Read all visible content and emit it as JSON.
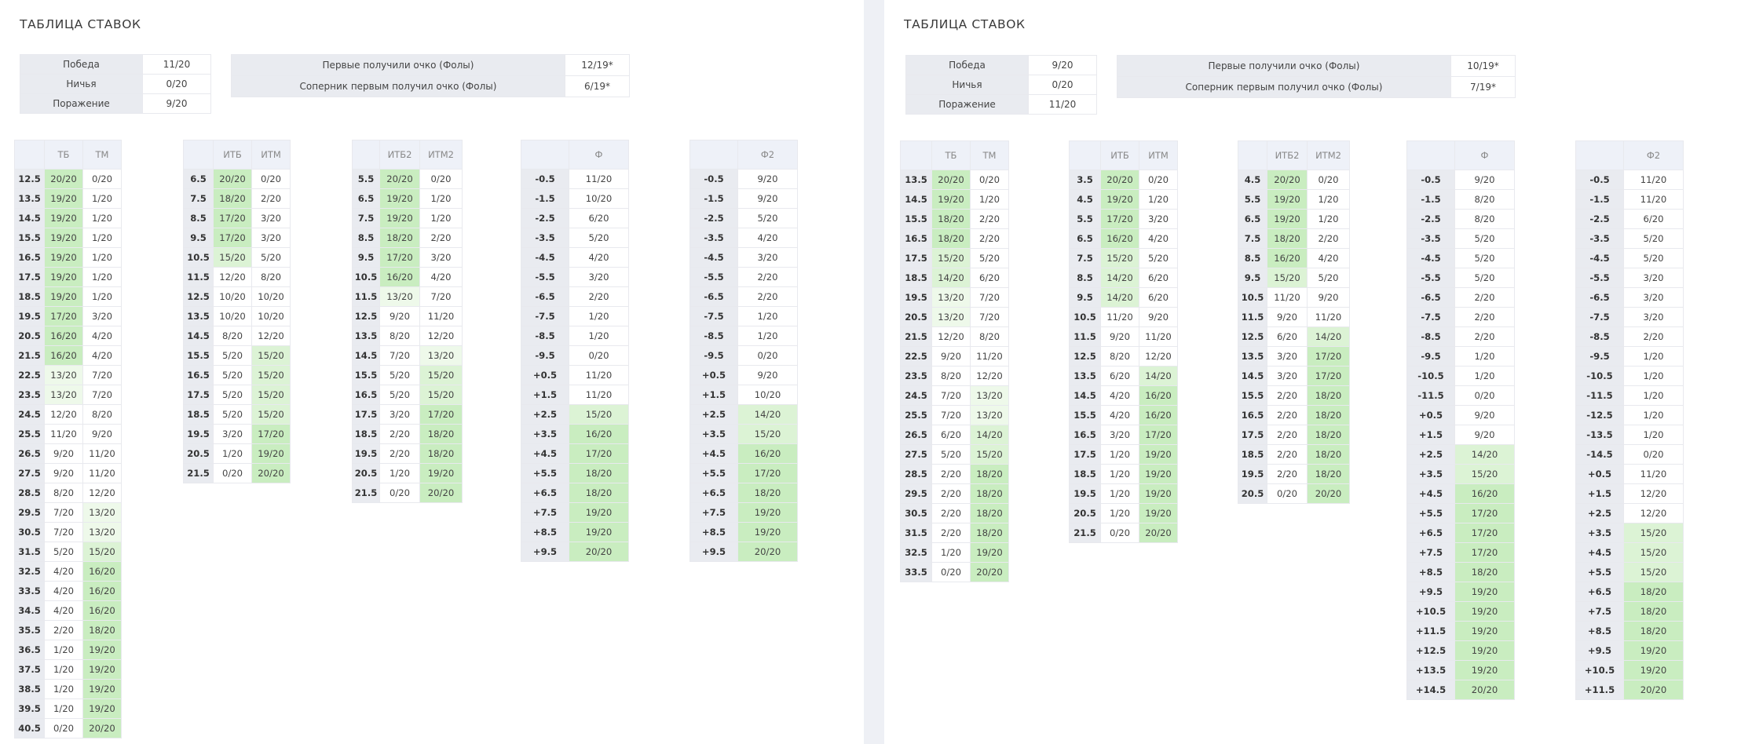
{
  "left": {
    "title": "ТАБЛИЦА СТАВОК",
    "results": [
      [
        "Победа",
        "11/20"
      ],
      [
        "Ничья",
        "0/20"
      ],
      [
        "Поражение",
        "9/20"
      ]
    ],
    "first_point": [
      [
        "Первые получили очко (Фолы)",
        "12/19*"
      ],
      [
        "Соперник первым получил очко (Фолы)",
        "6/19*"
      ]
    ],
    "tables": [
      {
        "headers": [
          "",
          "ТБ",
          "ТМ"
        ],
        "rows": [
          [
            "12.5",
            "20/20",
            "0/20"
          ],
          [
            "13.5",
            "19/20",
            "1/20"
          ],
          [
            "14.5",
            "19/20",
            "1/20"
          ],
          [
            "15.5",
            "19/20",
            "1/20"
          ],
          [
            "16.5",
            "19/20",
            "1/20"
          ],
          [
            "17.5",
            "19/20",
            "1/20"
          ],
          [
            "18.5",
            "19/20",
            "1/20"
          ],
          [
            "19.5",
            "17/20",
            "3/20"
          ],
          [
            "20.5",
            "16/20",
            "4/20"
          ],
          [
            "21.5",
            "16/20",
            "4/20"
          ],
          [
            "22.5",
            "13/20",
            "7/20"
          ],
          [
            "23.5",
            "13/20",
            "7/20"
          ],
          [
            "24.5",
            "12/20",
            "8/20"
          ],
          [
            "25.5",
            "11/20",
            "9/20"
          ],
          [
            "26.5",
            "9/20",
            "11/20"
          ],
          [
            "27.5",
            "9/20",
            "11/20"
          ],
          [
            "28.5",
            "8/20",
            "12/20"
          ],
          [
            "29.5",
            "7/20",
            "13/20"
          ],
          [
            "30.5",
            "7/20",
            "13/20"
          ],
          [
            "31.5",
            "5/20",
            "15/20"
          ],
          [
            "32.5",
            "4/20",
            "16/20"
          ],
          [
            "33.5",
            "4/20",
            "16/20"
          ],
          [
            "34.5",
            "4/20",
            "16/20"
          ],
          [
            "35.5",
            "2/20",
            "18/20"
          ],
          [
            "36.5",
            "1/20",
            "19/20"
          ],
          [
            "37.5",
            "1/20",
            "19/20"
          ],
          [
            "38.5",
            "1/20",
            "19/20"
          ],
          [
            "39.5",
            "1/20",
            "19/20"
          ],
          [
            "40.5",
            "0/20",
            "20/20"
          ]
        ]
      },
      {
        "headers": [
          "",
          "ИТБ",
          "ИТМ"
        ],
        "rows": [
          [
            "6.5",
            "20/20",
            "0/20"
          ],
          [
            "7.5",
            "18/20",
            "2/20"
          ],
          [
            "8.5",
            "17/20",
            "3/20"
          ],
          [
            "9.5",
            "17/20",
            "3/20"
          ],
          [
            "10.5",
            "15/20",
            "5/20"
          ],
          [
            "11.5",
            "12/20",
            "8/20"
          ],
          [
            "12.5",
            "10/20",
            "10/20"
          ],
          [
            "13.5",
            "10/20",
            "10/20"
          ],
          [
            "14.5",
            "8/20",
            "12/20"
          ],
          [
            "15.5",
            "5/20",
            "15/20"
          ],
          [
            "16.5",
            "5/20",
            "15/20"
          ],
          [
            "17.5",
            "5/20",
            "15/20"
          ],
          [
            "18.5",
            "5/20",
            "15/20"
          ],
          [
            "19.5",
            "3/20",
            "17/20"
          ],
          [
            "20.5",
            "1/20",
            "19/20"
          ],
          [
            "21.5",
            "0/20",
            "20/20"
          ]
        ]
      },
      {
        "headers": [
          "",
          "ИТБ2",
          "ИТМ2"
        ],
        "rows": [
          [
            "5.5",
            "20/20",
            "0/20"
          ],
          [
            "6.5",
            "19/20",
            "1/20"
          ],
          [
            "7.5",
            "19/20",
            "1/20"
          ],
          [
            "8.5",
            "18/20",
            "2/20"
          ],
          [
            "9.5",
            "17/20",
            "3/20"
          ],
          [
            "10.5",
            "16/20",
            "4/20"
          ],
          [
            "11.5",
            "13/20",
            "7/20"
          ],
          [
            "12.5",
            "9/20",
            "11/20"
          ],
          [
            "13.5",
            "8/20",
            "12/20"
          ],
          [
            "14.5",
            "7/20",
            "13/20"
          ],
          [
            "15.5",
            "5/20",
            "15/20"
          ],
          [
            "16.5",
            "5/20",
            "15/20"
          ],
          [
            "17.5",
            "3/20",
            "17/20"
          ],
          [
            "18.5",
            "2/20",
            "18/20"
          ],
          [
            "19.5",
            "2/20",
            "18/20"
          ],
          [
            "20.5",
            "1/20",
            "19/20"
          ],
          [
            "21.5",
            "0/20",
            "20/20"
          ]
        ]
      },
      {
        "headers": [
          "",
          "Ф"
        ],
        "rows": [
          [
            "-0.5",
            "11/20"
          ],
          [
            "-1.5",
            "10/20"
          ],
          [
            "-2.5",
            "6/20"
          ],
          [
            "-3.5",
            "5/20"
          ],
          [
            "-4.5",
            "4/20"
          ],
          [
            "-5.5",
            "3/20"
          ],
          [
            "-6.5",
            "2/20"
          ],
          [
            "-7.5",
            "1/20"
          ],
          [
            "-8.5",
            "1/20"
          ],
          [
            "-9.5",
            "0/20"
          ],
          [
            "+0.5",
            "11/20"
          ],
          [
            "+1.5",
            "11/20"
          ],
          [
            "+2.5",
            "15/20"
          ],
          [
            "+3.5",
            "16/20"
          ],
          [
            "+4.5",
            "17/20"
          ],
          [
            "+5.5",
            "18/20"
          ],
          [
            "+6.5",
            "18/20"
          ],
          [
            "+7.5",
            "19/20"
          ],
          [
            "+8.5",
            "19/20"
          ],
          [
            "+9.5",
            "20/20"
          ]
        ]
      },
      {
        "headers": [
          "",
          "Ф2"
        ],
        "rows": [
          [
            "-0.5",
            "9/20"
          ],
          [
            "-1.5",
            "9/20"
          ],
          [
            "-2.5",
            "5/20"
          ],
          [
            "-3.5",
            "4/20"
          ],
          [
            "-4.5",
            "3/20"
          ],
          [
            "-5.5",
            "2/20"
          ],
          [
            "-6.5",
            "2/20"
          ],
          [
            "-7.5",
            "1/20"
          ],
          [
            "-8.5",
            "1/20"
          ],
          [
            "-9.5",
            "0/20"
          ],
          [
            "+0.5",
            "9/20"
          ],
          [
            "+1.5",
            "10/20"
          ],
          [
            "+2.5",
            "14/20"
          ],
          [
            "+3.5",
            "15/20"
          ],
          [
            "+4.5",
            "16/20"
          ],
          [
            "+5.5",
            "17/20"
          ],
          [
            "+6.5",
            "18/20"
          ],
          [
            "+7.5",
            "19/20"
          ],
          [
            "+8.5",
            "19/20"
          ],
          [
            "+9.5",
            "20/20"
          ]
        ]
      }
    ]
  },
  "right": {
    "title": "ТАБЛИЦА СТАВОК",
    "results": [
      [
        "Победа",
        "9/20"
      ],
      [
        "Ничья",
        "0/20"
      ],
      [
        "Поражение",
        "11/20"
      ]
    ],
    "first_point": [
      [
        "Первые получили очко (Фолы)",
        "10/19*"
      ],
      [
        "Соперник первым получил очко (Фолы)",
        "7/19*"
      ]
    ],
    "tables": [
      {
        "headers": [
          "",
          "ТБ",
          "ТМ"
        ],
        "rows": [
          [
            "13.5",
            "20/20",
            "0/20"
          ],
          [
            "14.5",
            "19/20",
            "1/20"
          ],
          [
            "15.5",
            "18/20",
            "2/20"
          ],
          [
            "16.5",
            "18/20",
            "2/20"
          ],
          [
            "17.5",
            "15/20",
            "5/20"
          ],
          [
            "18.5",
            "14/20",
            "6/20"
          ],
          [
            "19.5",
            "13/20",
            "7/20"
          ],
          [
            "20.5",
            "13/20",
            "7/20"
          ],
          [
            "21.5",
            "12/20",
            "8/20"
          ],
          [
            "22.5",
            "9/20",
            "11/20"
          ],
          [
            "23.5",
            "8/20",
            "12/20"
          ],
          [
            "24.5",
            "7/20",
            "13/20"
          ],
          [
            "25.5",
            "7/20",
            "13/20"
          ],
          [
            "26.5",
            "6/20",
            "14/20"
          ],
          [
            "27.5",
            "5/20",
            "15/20"
          ],
          [
            "28.5",
            "2/20",
            "18/20"
          ],
          [
            "29.5",
            "2/20",
            "18/20"
          ],
          [
            "30.5",
            "2/20",
            "18/20"
          ],
          [
            "31.5",
            "2/20",
            "18/20"
          ],
          [
            "32.5",
            "1/20",
            "19/20"
          ],
          [
            "33.5",
            "0/20",
            "20/20"
          ]
        ]
      },
      {
        "headers": [
          "",
          "ИТБ",
          "ИТМ"
        ],
        "rows": [
          [
            "3.5",
            "20/20",
            "0/20"
          ],
          [
            "4.5",
            "19/20",
            "1/20"
          ],
          [
            "5.5",
            "17/20",
            "3/20"
          ],
          [
            "6.5",
            "16/20",
            "4/20"
          ],
          [
            "7.5",
            "15/20",
            "5/20"
          ],
          [
            "8.5",
            "14/20",
            "6/20"
          ],
          [
            "9.5",
            "14/20",
            "6/20"
          ],
          [
            "10.5",
            "11/20",
            "9/20"
          ],
          [
            "11.5",
            "9/20",
            "11/20"
          ],
          [
            "12.5",
            "8/20",
            "12/20"
          ],
          [
            "13.5",
            "6/20",
            "14/20"
          ],
          [
            "14.5",
            "4/20",
            "16/20"
          ],
          [
            "15.5",
            "4/20",
            "16/20"
          ],
          [
            "16.5",
            "3/20",
            "17/20"
          ],
          [
            "17.5",
            "1/20",
            "19/20"
          ],
          [
            "18.5",
            "1/20",
            "19/20"
          ],
          [
            "19.5",
            "1/20",
            "19/20"
          ],
          [
            "20.5",
            "1/20",
            "19/20"
          ],
          [
            "21.5",
            "0/20",
            "20/20"
          ]
        ]
      },
      {
        "headers": [
          "",
          "ИТБ2",
          "ИТМ2"
        ],
        "rows": [
          [
            "4.5",
            "20/20",
            "0/20"
          ],
          [
            "5.5",
            "19/20",
            "1/20"
          ],
          [
            "6.5",
            "19/20",
            "1/20"
          ],
          [
            "7.5",
            "18/20",
            "2/20"
          ],
          [
            "8.5",
            "16/20",
            "4/20"
          ],
          [
            "9.5",
            "15/20",
            "5/20"
          ],
          [
            "10.5",
            "11/20",
            "9/20"
          ],
          [
            "11.5",
            "9/20",
            "11/20"
          ],
          [
            "12.5",
            "6/20",
            "14/20"
          ],
          [
            "13.5",
            "3/20",
            "17/20"
          ],
          [
            "14.5",
            "3/20",
            "17/20"
          ],
          [
            "15.5",
            "2/20",
            "18/20"
          ],
          [
            "16.5",
            "2/20",
            "18/20"
          ],
          [
            "17.5",
            "2/20",
            "18/20"
          ],
          [
            "18.5",
            "2/20",
            "18/20"
          ],
          [
            "19.5",
            "2/20",
            "18/20"
          ],
          [
            "20.5",
            "0/20",
            "20/20"
          ]
        ]
      },
      {
        "headers": [
          "",
          "Ф"
        ],
        "rows": [
          [
            "-0.5",
            "9/20"
          ],
          [
            "-1.5",
            "8/20"
          ],
          [
            "-2.5",
            "8/20"
          ],
          [
            "-3.5",
            "5/20"
          ],
          [
            "-4.5",
            "5/20"
          ],
          [
            "-5.5",
            "5/20"
          ],
          [
            "-6.5",
            "2/20"
          ],
          [
            "-7.5",
            "2/20"
          ],
          [
            "-8.5",
            "2/20"
          ],
          [
            "-9.5",
            "1/20"
          ],
          [
            "-10.5",
            "1/20"
          ],
          [
            "-11.5",
            "0/20"
          ],
          [
            "+0.5",
            "9/20"
          ],
          [
            "+1.5",
            "9/20"
          ],
          [
            "+2.5",
            "14/20"
          ],
          [
            "+3.5",
            "15/20"
          ],
          [
            "+4.5",
            "16/20"
          ],
          [
            "+5.5",
            "17/20"
          ],
          [
            "+6.5",
            "17/20"
          ],
          [
            "+7.5",
            "17/20"
          ],
          [
            "+8.5",
            "18/20"
          ],
          [
            "+9.5",
            "19/20"
          ],
          [
            "+10.5",
            "19/20"
          ],
          [
            "+11.5",
            "19/20"
          ],
          [
            "+12.5",
            "19/20"
          ],
          [
            "+13.5",
            "19/20"
          ],
          [
            "+14.5",
            "20/20"
          ]
        ]
      },
      {
        "headers": [
          "",
          "Ф2"
        ],
        "rows": [
          [
            "-0.5",
            "11/20"
          ],
          [
            "-1.5",
            "11/20"
          ],
          [
            "-2.5",
            "6/20"
          ],
          [
            "-3.5",
            "5/20"
          ],
          [
            "-4.5",
            "5/20"
          ],
          [
            "-5.5",
            "3/20"
          ],
          [
            "-6.5",
            "3/20"
          ],
          [
            "-7.5",
            "3/20"
          ],
          [
            "-8.5",
            "2/20"
          ],
          [
            "-9.5",
            "1/20"
          ],
          [
            "-10.5",
            "1/20"
          ],
          [
            "-11.5",
            "1/20"
          ],
          [
            "-12.5",
            "1/20"
          ],
          [
            "-13.5",
            "1/20"
          ],
          [
            "-14.5",
            "0/20"
          ],
          [
            "+0.5",
            "11/20"
          ],
          [
            "+1.5",
            "12/20"
          ],
          [
            "+2.5",
            "12/20"
          ],
          [
            "+3.5",
            "15/20"
          ],
          [
            "+4.5",
            "15/20"
          ],
          [
            "+5.5",
            "15/20"
          ],
          [
            "+6.5",
            "18/20"
          ],
          [
            "+7.5",
            "18/20"
          ],
          [
            "+8.5",
            "18/20"
          ],
          [
            "+9.5",
            "19/20"
          ],
          [
            "+10.5",
            "19/20"
          ],
          [
            "+11.5",
            "20/20"
          ]
        ]
      }
    ]
  }
}
